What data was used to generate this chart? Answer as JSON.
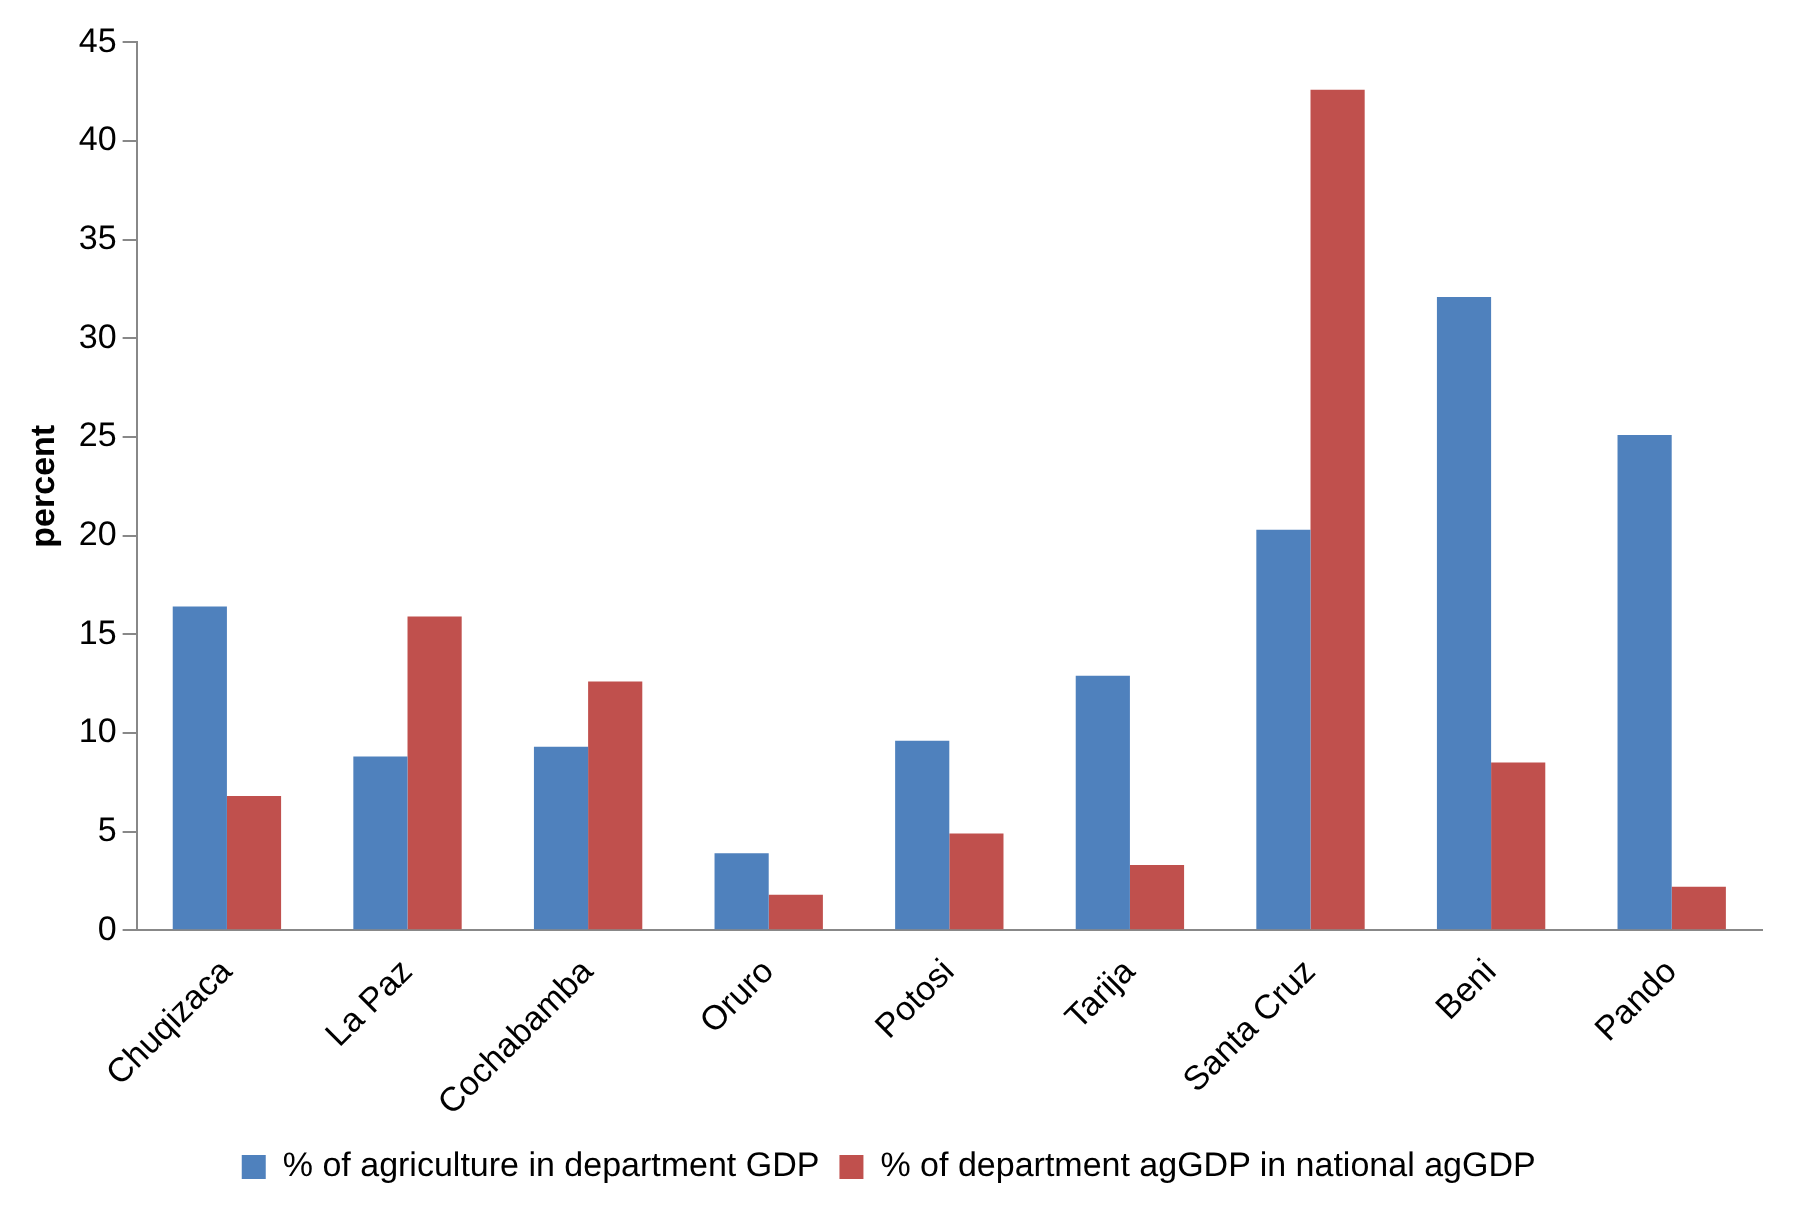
{
  "chart_data": {
    "type": "bar",
    "ylabel": "percent",
    "categories": [
      "Chuqizaca",
      "La Paz",
      "Cochabamba",
      "Oruro",
      "Potosi",
      "Tarija",
      "Santa Cruz",
      "Beni",
      "Pando"
    ],
    "series": [
      {
        "name": "% of agriculture in department GDP",
        "color": "#4f81bd",
        "values": [
          16.4,
          8.8,
          9.3,
          3.9,
          9.6,
          12.9,
          20.3,
          32.1,
          25.1
        ]
      },
      {
        "name": "% of department agGDP in national agGDP",
        "color": "#c0504d",
        "values": [
          6.8,
          15.9,
          12.6,
          1.8,
          4.9,
          3.3,
          42.6,
          8.5,
          2.2
        ]
      }
    ],
    "ylim": [
      0,
      45
    ],
    "yticks": [
      0,
      5,
      10,
      15,
      20,
      25,
      30,
      35,
      40,
      45
    ],
    "grid": false,
    "legend": "bottom"
  }
}
